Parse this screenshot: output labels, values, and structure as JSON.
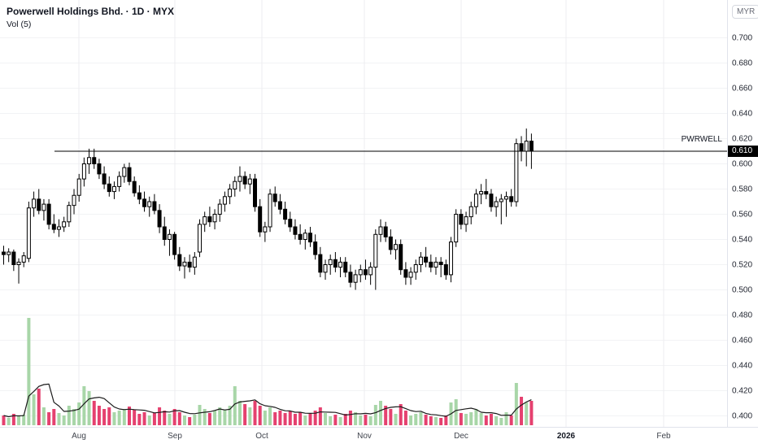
{
  "header": {
    "symbol_title": "Powerwell Holdings Bhd. · 1D · MYX",
    "indicator_label": "Vol (5)"
  },
  "price_axis": {
    "currency_label": "MYR",
    "ticks": [
      "0.700",
      "0.680",
      "0.660",
      "0.640",
      "0.620",
      "0.600",
      "0.580",
      "0.560",
      "0.540",
      "0.520",
      "0.500",
      "0.480",
      "0.460",
      "0.440",
      "0.420",
      "0.400"
    ],
    "last_price_label": "0.610"
  },
  "price_line": {
    "symbol_tag": "PWRWELL",
    "value": 0.61
  },
  "time_axis": {
    "labels": [
      "Aug",
      "Sep",
      "Oct",
      "Nov",
      "Dec",
      "2026",
      "Feb"
    ]
  },
  "colors": {
    "background": "#ffffff",
    "candle_up_fill": "#ffffff",
    "candle_down_fill": "#000000",
    "candle_border": "#000000",
    "volume_up": "#a8d6a8",
    "volume_down": "#e5416f",
    "volume_ma_line": "#1b1b1b",
    "price_line": "#000000",
    "grid_h": "#f2f3f5",
    "grid_v": "#ededf0"
  },
  "chart_data": {
    "type": "candlestick",
    "title": "Powerwell Holdings Bhd. · 1D · MYX",
    "symbol": "PWRWELL",
    "exchange": "MYX",
    "timeframe": "1D",
    "currency": "MYR",
    "last_price": 0.61,
    "price_axis_range": [
      0.4,
      0.7
    ],
    "price_axis_step": 0.02,
    "time_labels": [
      "Aug",
      "Sep",
      "Oct",
      "Nov",
      "Dec",
      "2026",
      "Feb"
    ],
    "volume_ma_period": 5,
    "grid": true,
    "candles_note": "each candle is [open, high, low, close, volume]; volume in relative units",
    "candles": [
      [
        0.53,
        0.535,
        0.52,
        0.528,
        12
      ],
      [
        0.528,
        0.533,
        0.522,
        0.53,
        9
      ],
      [
        0.53,
        0.532,
        0.515,
        0.52,
        14
      ],
      [
        0.52,
        0.525,
        0.505,
        0.522,
        11
      ],
      [
        0.522,
        0.53,
        0.518,
        0.527,
        13
      ],
      [
        0.525,
        0.57,
        0.522,
        0.565,
        132
      ],
      [
        0.565,
        0.578,
        0.558,
        0.572,
        38
      ],
      [
        0.572,
        0.58,
        0.56,
        0.563,
        45
      ],
      [
        0.563,
        0.572,
        0.555,
        0.568,
        22
      ],
      [
        0.568,
        0.572,
        0.548,
        0.552,
        16
      ],
      [
        0.552,
        0.56,
        0.545,
        0.548,
        20
      ],
      [
        0.548,
        0.556,
        0.542,
        0.55,
        15
      ],
      [
        0.55,
        0.558,
        0.546,
        0.554,
        12
      ],
      [
        0.554,
        0.57,
        0.55,
        0.567,
        24
      ],
      [
        0.567,
        0.58,
        0.56,
        0.575,
        20
      ],
      [
        0.575,
        0.592,
        0.57,
        0.588,
        28
      ],
      [
        0.588,
        0.605,
        0.582,
        0.6,
        48
      ],
      [
        0.6,
        0.612,
        0.592,
        0.605,
        42
      ],
      [
        0.605,
        0.612,
        0.596,
        0.6,
        30
      ],
      [
        0.6,
        0.604,
        0.588,
        0.592,
        24
      ],
      [
        0.592,
        0.598,
        0.58,
        0.584,
        20
      ],
      [
        0.584,
        0.59,
        0.574,
        0.578,
        22
      ],
      [
        0.578,
        0.586,
        0.572,
        0.582,
        16
      ],
      [
        0.582,
        0.594,
        0.578,
        0.59,
        18
      ],
      [
        0.59,
        0.6,
        0.585,
        0.597,
        20
      ],
      [
        0.597,
        0.601,
        0.583,
        0.586,
        23
      ],
      [
        0.586,
        0.59,
        0.574,
        0.577,
        19
      ],
      [
        0.577,
        0.583,
        0.568,
        0.572,
        14
      ],
      [
        0.572,
        0.578,
        0.562,
        0.566,
        16
      ],
      [
        0.566,
        0.574,
        0.558,
        0.57,
        12
      ],
      [
        0.57,
        0.576,
        0.56,
        0.563,
        15
      ],
      [
        0.563,
        0.568,
        0.545,
        0.55,
        22
      ],
      [
        0.55,
        0.558,
        0.535,
        0.54,
        18
      ],
      [
        0.54,
        0.548,
        0.527,
        0.544,
        14
      ],
      [
        0.544,
        0.546,
        0.524,
        0.528,
        20
      ],
      [
        0.528,
        0.534,
        0.515,
        0.519,
        16
      ],
      [
        0.519,
        0.526,
        0.509,
        0.522,
        12
      ],
      [
        0.522,
        0.528,
        0.514,
        0.518,
        10
      ],
      [
        0.518,
        0.53,
        0.512,
        0.526,
        13
      ],
      [
        0.53,
        0.556,
        0.526,
        0.552,
        25
      ],
      [
        0.552,
        0.562,
        0.546,
        0.558,
        20
      ],
      [
        0.558,
        0.566,
        0.55,
        0.554,
        15
      ],
      [
        0.554,
        0.564,
        0.548,
        0.56,
        18
      ],
      [
        0.56,
        0.572,
        0.554,
        0.568,
        22
      ],
      [
        0.568,
        0.578,
        0.562,
        0.574,
        19
      ],
      [
        0.574,
        0.584,
        0.568,
        0.58,
        24
      ],
      [
        0.58,
        0.59,
        0.574,
        0.586,
        48
      ],
      [
        0.586,
        0.598,
        0.578,
        0.59,
        30
      ],
      [
        0.59,
        0.594,
        0.58,
        0.584,
        26
      ],
      [
        0.584,
        0.592,
        0.576,
        0.588,
        22
      ],
      [
        0.588,
        0.592,
        0.562,
        0.566,
        30
      ],
      [
        0.566,
        0.572,
        0.542,
        0.546,
        24
      ],
      [
        0.546,
        0.554,
        0.538,
        0.55,
        18
      ],
      [
        0.55,
        0.58,
        0.546,
        0.576,
        22
      ],
      [
        0.576,
        0.582,
        0.566,
        0.57,
        16
      ],
      [
        0.57,
        0.576,
        0.56,
        0.564,
        18
      ],
      [
        0.564,
        0.57,
        0.552,
        0.556,
        15
      ],
      [
        0.556,
        0.562,
        0.546,
        0.55,
        17
      ],
      [
        0.55,
        0.556,
        0.54,
        0.544,
        14
      ],
      [
        0.544,
        0.552,
        0.536,
        0.54,
        16
      ],
      [
        0.54,
        0.548,
        0.532,
        0.545,
        12
      ],
      [
        0.545,
        0.55,
        0.534,
        0.538,
        14
      ],
      [
        0.538,
        0.544,
        0.524,
        0.528,
        18
      ],
      [
        0.528,
        0.534,
        0.51,
        0.514,
        22
      ],
      [
        0.514,
        0.524,
        0.508,
        0.52,
        15
      ],
      [
        0.52,
        0.528,
        0.512,
        0.524,
        11
      ],
      [
        0.524,
        0.53,
        0.514,
        0.518,
        13
      ],
      [
        0.518,
        0.526,
        0.51,
        0.522,
        10
      ],
      [
        0.522,
        0.526,
        0.51,
        0.514,
        14
      ],
      [
        0.514,
        0.52,
        0.502,
        0.506,
        18
      ],
      [
        0.506,
        0.516,
        0.5,
        0.512,
        16
      ],
      [
        0.512,
        0.52,
        0.506,
        0.516,
        12
      ],
      [
        0.516,
        0.524,
        0.508,
        0.512,
        13
      ],
      [
        0.512,
        0.522,
        0.504,
        0.518,
        11
      ],
      [
        0.518,
        0.548,
        0.5,
        0.544,
        25
      ],
      [
        0.544,
        0.556,
        0.538,
        0.55,
        30
      ],
      [
        0.55,
        0.554,
        0.538,
        0.542,
        24
      ],
      [
        0.542,
        0.548,
        0.528,
        0.532,
        20
      ],
      [
        0.532,
        0.54,
        0.524,
        0.536,
        14
      ],
      [
        0.536,
        0.54,
        0.512,
        0.516,
        26
      ],
      [
        0.516,
        0.522,
        0.504,
        0.51,
        18
      ],
      [
        0.51,
        0.518,
        0.504,
        0.514,
        12
      ],
      [
        0.514,
        0.524,
        0.508,
        0.52,
        14
      ],
      [
        0.52,
        0.53,
        0.514,
        0.526,
        16
      ],
      [
        0.526,
        0.534,
        0.518,
        0.522,
        13
      ],
      [
        0.522,
        0.528,
        0.514,
        0.518,
        11
      ],
      [
        0.518,
        0.526,
        0.512,
        0.522,
        10
      ],
      [
        0.522,
        0.526,
        0.51,
        0.52,
        9
      ],
      [
        0.52,
        0.524,
        0.508,
        0.512,
        12
      ],
      [
        0.512,
        0.542,
        0.506,
        0.538,
        28
      ],
      [
        0.538,
        0.564,
        0.534,
        0.56,
        32
      ],
      [
        0.56,
        0.564,
        0.548,
        0.552,
        15
      ],
      [
        0.552,
        0.562,
        0.546,
        0.558,
        14
      ],
      [
        0.558,
        0.57,
        0.552,
        0.566,
        16
      ],
      [
        0.566,
        0.58,
        0.56,
        0.576,
        20
      ],
      [
        0.576,
        0.584,
        0.568,
        0.578,
        15
      ],
      [
        0.578,
        0.588,
        0.572,
        0.576,
        12
      ],
      [
        0.576,
        0.58,
        0.562,
        0.566,
        14
      ],
      [
        0.566,
        0.574,
        0.558,
        0.57,
        11
      ],
      [
        0.57,
        0.576,
        0.552,
        0.572,
        9
      ],
      [
        0.572,
        0.578,
        0.558,
        0.574,
        16
      ],
      [
        0.574,
        0.58,
        0.566,
        0.57,
        12
      ],
      [
        0.57,
        0.62,
        0.566,
        0.616,
        52
      ],
      [
        0.616,
        0.622,
        0.602,
        0.61,
        35
      ],
      [
        0.61,
        0.628,
        0.598,
        0.618,
        28
      ],
      [
        0.618,
        0.624,
        0.596,
        0.61,
        30
      ]
    ]
  }
}
